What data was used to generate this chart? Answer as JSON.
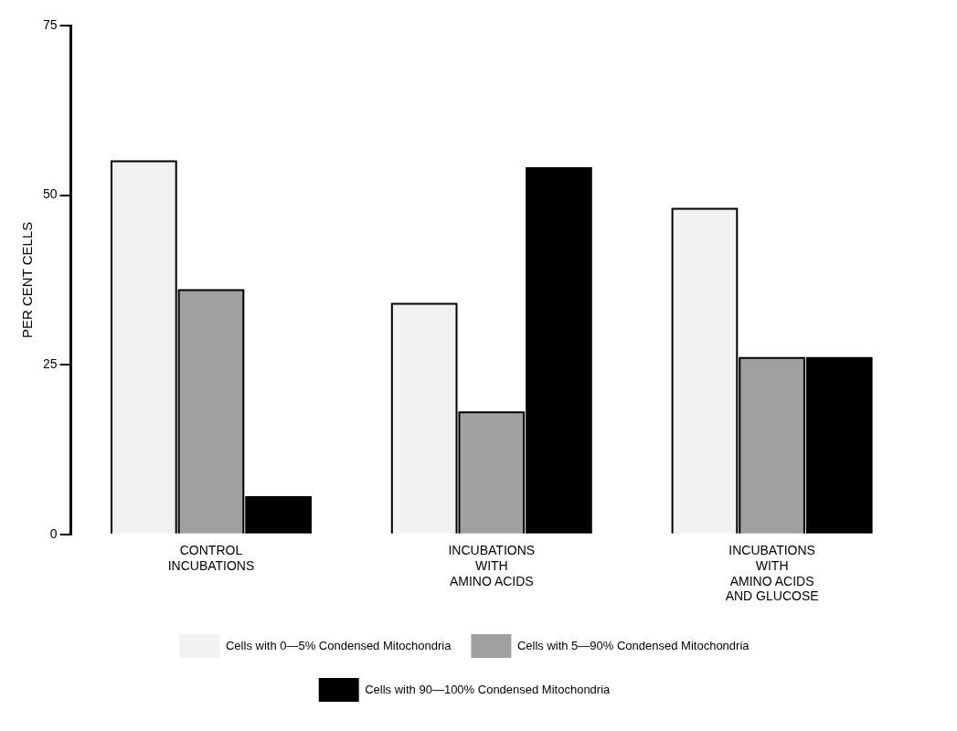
{
  "chart_data": {
    "type": "bar",
    "ylabel": "PER CENT CELLS",
    "categories": [
      "CONTROL\nINCUBATIONS",
      "INCUBATIONS\nWITH\nAMINO ACIDS",
      "INCUBATIONS\nWITH\nAMINO ACIDS\nAND GLUCOSE"
    ],
    "series": [
      {
        "name": "Cells with 0—5% Condensed Mitochondria",
        "color": "#f2f2f2",
        "values": [
          55,
          34,
          48
        ]
      },
      {
        "name": "Cells with 5—90% Condensed Mitochondria",
        "color": "#a0a0a0",
        "values": [
          36,
          18,
          26
        ]
      },
      {
        "name": "Cells with 90—100% Condensed Mitochondria",
        "color": "#000000",
        "values": [
          5.5,
          54,
          26
        ]
      }
    ],
    "ylim": [
      0,
      75
    ],
    "yticks": [
      0,
      25,
      50,
      75
    ],
    "grid": false,
    "legend": "bottom"
  }
}
